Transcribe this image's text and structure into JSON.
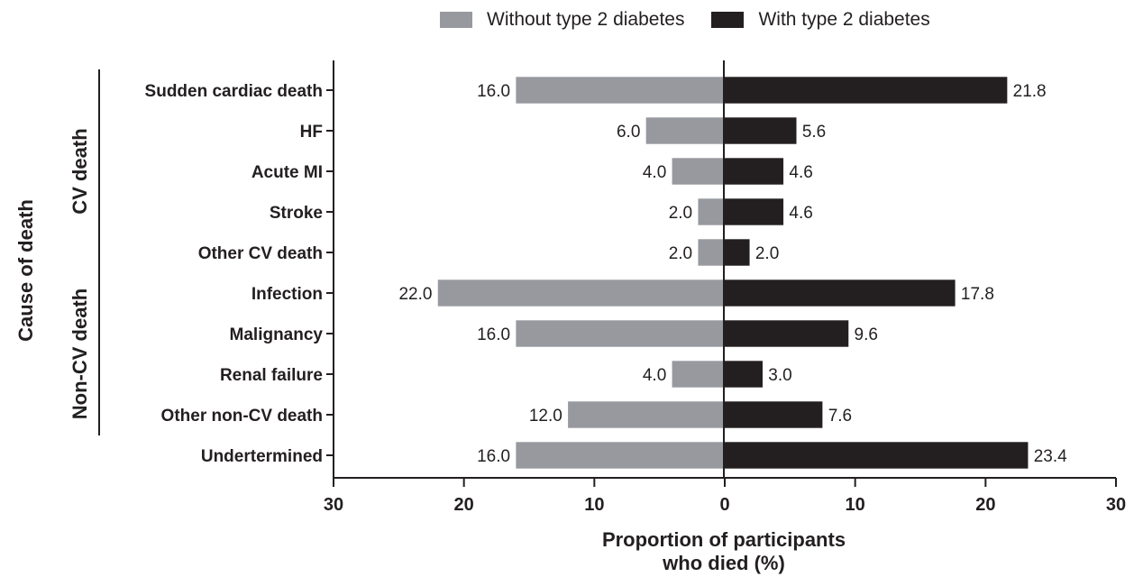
{
  "chart_data": {
    "type": "bar",
    "orientation": "horizontal-diverging",
    "xlabel_line1": "Proportion of participants",
    "xlabel_line2": "who died (%)",
    "ylabel": "Cause of death",
    "xlim": [
      -30,
      30
    ],
    "xticks": [
      "30",
      "20",
      "10",
      "0",
      "10",
      "20",
      "30"
    ],
    "groups": [
      {
        "label": "CV death",
        "categories": [
          "Sudden cardiac death",
          "HF",
          "Acute MI",
          "Stroke",
          "Other CV death"
        ]
      },
      {
        "label": "Non-CV death",
        "categories": [
          "Infection",
          "Malignancy",
          "Renal failure",
          "Other non-CV death"
        ]
      }
    ],
    "categories": [
      "Sudden cardiac death",
      "HF",
      "Acute MI",
      "Stroke",
      "Other CV death",
      "Infection",
      "Malignancy",
      "Renal failure",
      "Other non-CV death",
      "Undertermined"
    ],
    "series": [
      {
        "name": "Without type 2 diabetes",
        "side": "left",
        "color": "#97999f",
        "values": [
          16.0,
          6.0,
          4.0,
          2.0,
          2.0,
          22.0,
          16.0,
          4.0,
          12.0,
          16.0
        ],
        "labels": [
          "16.0",
          "6.0",
          "4.0",
          "2.0",
          "2.0",
          "22.0",
          "16.0",
          "4.0",
          "12.0",
          "16.0"
        ]
      },
      {
        "name": "With type 2 diabetes",
        "side": "right",
        "color": "#231f20",
        "values": [
          21.8,
          5.6,
          4.6,
          4.6,
          2.0,
          17.8,
          9.6,
          3.0,
          7.6,
          23.4
        ],
        "labels": [
          "21.8",
          "5.6",
          "4.6",
          "4.6",
          "2.0",
          "17.8",
          "9.6",
          "3.0",
          "7.6",
          "23.4"
        ]
      }
    ],
    "legend_position": "top"
  }
}
